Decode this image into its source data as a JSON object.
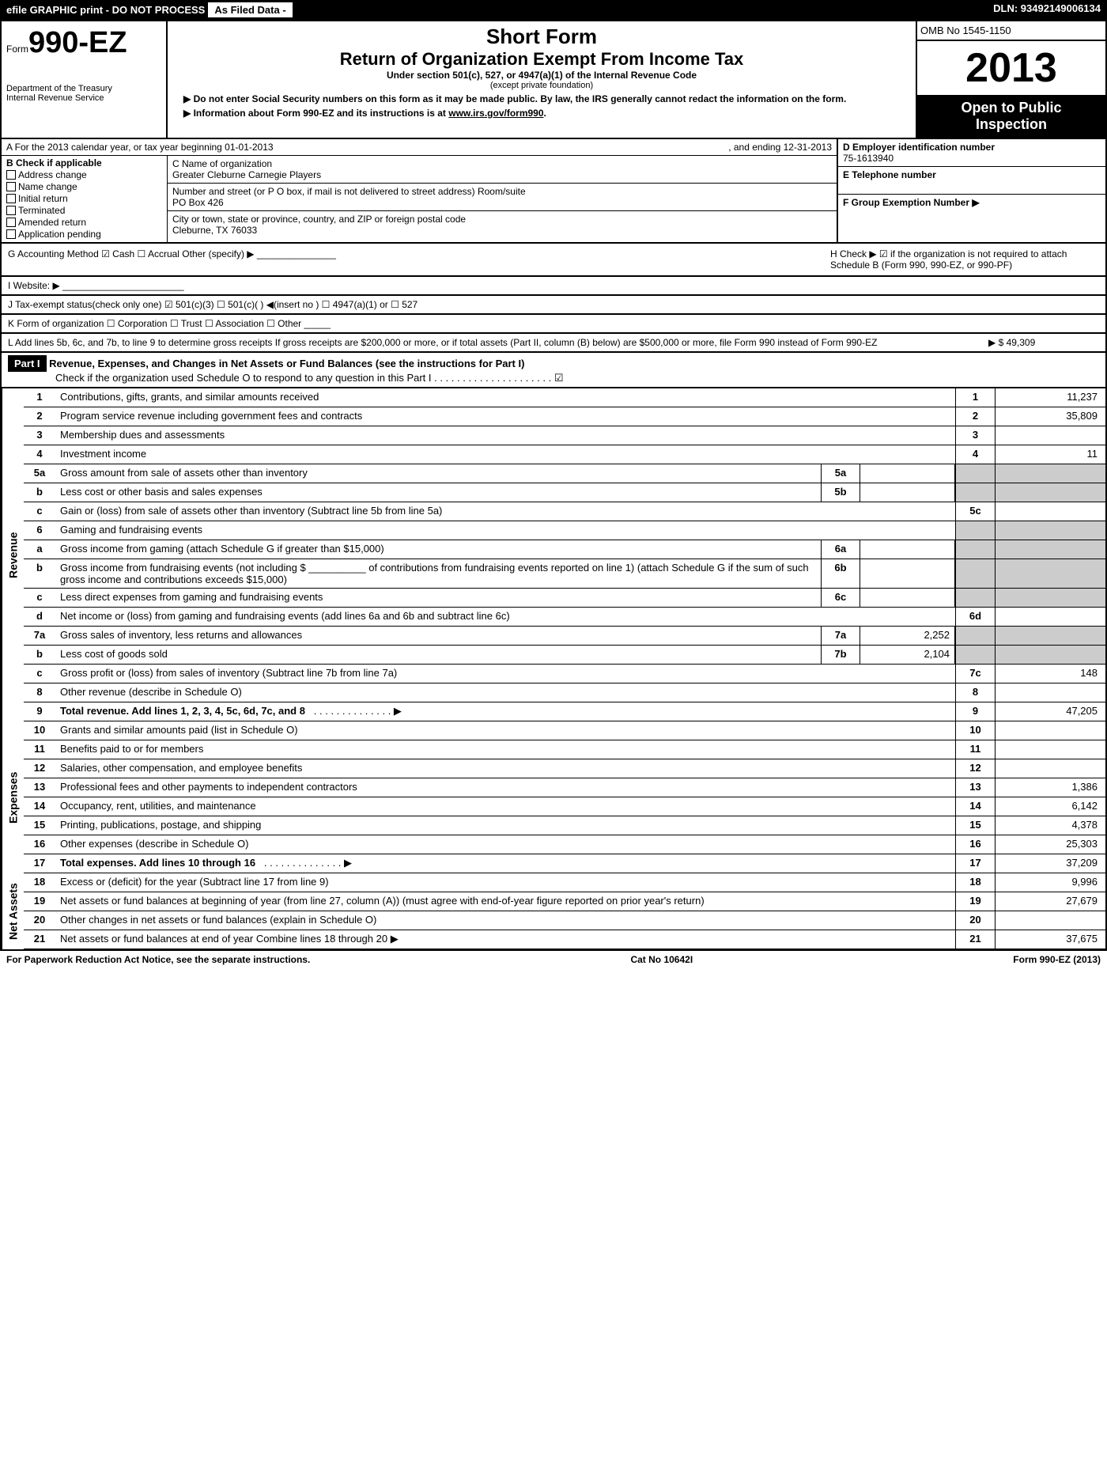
{
  "topbar": {
    "efile": "efile GRAPHIC print - DO NOT PROCESS",
    "asfiled": "As Filed Data -",
    "dln": "DLN: 93492149006134"
  },
  "header": {
    "form_prefix": "Form",
    "form_num": "990-EZ",
    "dept1": "Department of the Treasury",
    "dept2": "Internal Revenue Service",
    "short_form": "Short Form",
    "title": "Return of Organization Exempt From Income Tax",
    "sub1": "Under section 501(c), 527, or 4947(a)(1) of the Internal Revenue Code",
    "sub2": "(except private foundation)",
    "instr1": "▶ Do not enter Social Security numbers on this form as it may be made public. By law, the IRS generally cannot redact the information on the form.",
    "instr2": "▶ Information about Form 990-EZ and its instructions is at ",
    "instr2_link": "www.irs.gov/form990",
    "omb": "OMB No 1545-1150",
    "year": "2013",
    "open1": "Open to Public",
    "open2": "Inspection"
  },
  "section_a": {
    "cal_year": "A For the 2013 calendar year, or tax year beginning 01-01-2013",
    "ending": ", and ending 12-31-2013",
    "b_label": "B Check if applicable",
    "checks": [
      "Address change",
      "Name change",
      "Initial return",
      "Terminated",
      "Amended return",
      "Application pending"
    ],
    "c_label": "C Name of organization",
    "c_name": "Greater Cleburne Carnegie Players",
    "street_label": "Number and street (or P O box, if mail is not delivered to street address) Room/suite",
    "street": "PO Box 426",
    "city_label": "City or town, state or province, country, and ZIP or foreign postal code",
    "city": "Cleburne, TX 76033",
    "d_label": "D Employer identification number",
    "d_val": "75-1613940",
    "e_label": "E Telephone number",
    "f_label": "F Group Exemption Number ▶"
  },
  "gh": {
    "g": "G Accounting Method   ☑ Cash  ☐ Accrual  Other (specify) ▶ _______________",
    "h": "H Check ▶ ☑ if the organization is not required to attach Schedule B (Form 990, 990-EZ, or 990-PF)"
  },
  "i": "I Website: ▶ _______________________",
  "j": "J Tax-exempt status(check only one) ☑ 501(c)(3) ☐ 501(c)( ) ◀(insert no ) ☐ 4947(a)(1) or ☐ 527",
  "k": "K Form of organization  ☐ Corporation ☐ Trust ☐ Association ☐ Other _____",
  "l": {
    "text": "L Add lines 5b, 6c, and 7b, to line 9 to determine gross receipts  If gross receipts are $200,000 or more, or if total assets (Part II, column (B) below) are $500,000 or more, file Form 990 instead of Form 990-EZ",
    "val": "▶ $ 49,309"
  },
  "part1": {
    "label": "Part I",
    "title": "Revenue, Expenses, and Changes in Net Assets or Fund Balances (see the instructions for Part I)",
    "sub": "Check if the organization used Schedule O to respond to any question in this Part I . . . . . . . . . . . . . . . . . . . . . ☑"
  },
  "sides": {
    "revenue": "Revenue",
    "expenses": "Expenses",
    "netassets": "Net Assets"
  },
  "lines": {
    "l1": {
      "n": "1",
      "d": "Contributions, gifts, grants, and similar amounts received",
      "box": "1",
      "v": "11,237"
    },
    "l2": {
      "n": "2",
      "d": "Program service revenue including government fees and contracts",
      "box": "2",
      "v": "35,809"
    },
    "l3": {
      "n": "3",
      "d": "Membership dues and assessments",
      "box": "3",
      "v": ""
    },
    "l4": {
      "n": "4",
      "d": "Investment income",
      "box": "4",
      "v": "11"
    },
    "l5a": {
      "n": "5a",
      "d": "Gross amount from sale of assets other than inventory",
      "sb": "5a",
      "sv": ""
    },
    "l5b": {
      "n": "b",
      "d": "Less cost or other basis and sales expenses",
      "sb": "5b",
      "sv": ""
    },
    "l5c": {
      "n": "c",
      "d": "Gain or (loss) from sale of assets other than inventory (Subtract line 5b from line 5a)",
      "box": "5c",
      "v": ""
    },
    "l6": {
      "n": "6",
      "d": "Gaming and fundraising events"
    },
    "l6a": {
      "n": "a",
      "d": "Gross income from gaming (attach Schedule G if greater than $15,000)",
      "sb": "6a",
      "sv": ""
    },
    "l6b": {
      "n": "b",
      "d": "Gross income from fundraising events (not including $ __________ of contributions from fundraising events reported on line 1) (attach Schedule G if the sum of such gross income and contributions exceeds $15,000)",
      "sb": "6b",
      "sv": ""
    },
    "l6c": {
      "n": "c",
      "d": "Less direct expenses from gaming and fundraising events",
      "sb": "6c",
      "sv": ""
    },
    "l6d": {
      "n": "d",
      "d": "Net income or (loss) from gaming and fundraising events (add lines 6a and 6b and subtract line 6c)",
      "box": "6d",
      "v": ""
    },
    "l7a": {
      "n": "7a",
      "d": "Gross sales of inventory, less returns and allowances",
      "sb": "7a",
      "sv": "2,252"
    },
    "l7b": {
      "n": "b",
      "d": "Less cost of goods sold",
      "sb": "7b",
      "sv": "2,104"
    },
    "l7c": {
      "n": "c",
      "d": "Gross profit or (loss) from sales of inventory (Subtract line 7b from line 7a)",
      "box": "7c",
      "v": "148"
    },
    "l8": {
      "n": "8",
      "d": "Other revenue (describe in Schedule O)",
      "box": "8",
      "v": ""
    },
    "l9": {
      "n": "9",
      "d": "Total revenue. Add lines 1, 2, 3, 4, 5c, 6d, 7c, and 8",
      "box": "9",
      "v": "47,205",
      "bold": true,
      "arrow": "▶"
    },
    "l10": {
      "n": "10",
      "d": "Grants and similar amounts paid (list in Schedule O)",
      "box": "10",
      "v": ""
    },
    "l11": {
      "n": "11",
      "d": "Benefits paid to or for members",
      "box": "11",
      "v": ""
    },
    "l12": {
      "n": "12",
      "d": "Salaries, other compensation, and employee benefits",
      "box": "12",
      "v": ""
    },
    "l13": {
      "n": "13",
      "d": "Professional fees and other payments to independent contractors",
      "box": "13",
      "v": "1,386"
    },
    "l14": {
      "n": "14",
      "d": "Occupancy, rent, utilities, and maintenance",
      "box": "14",
      "v": "6,142"
    },
    "l15": {
      "n": "15",
      "d": "Printing, publications, postage, and shipping",
      "box": "15",
      "v": "4,378"
    },
    "l16": {
      "n": "16",
      "d": "Other expenses (describe in Schedule O)",
      "box": "16",
      "v": "25,303"
    },
    "l17": {
      "n": "17",
      "d": "Total expenses. Add lines 10 through 16",
      "box": "17",
      "v": "37,209",
      "bold": true,
      "arrow": "▶"
    },
    "l18": {
      "n": "18",
      "d": "Excess or (deficit) for the year (Subtract line 17 from line 9)",
      "box": "18",
      "v": "9,996"
    },
    "l19": {
      "n": "19",
      "d": "Net assets or fund balances at beginning of year (from line 27, column (A)) (must agree with end-of-year figure reported on prior year's return)",
      "box": "19",
      "v": "27,679"
    },
    "l20": {
      "n": "20",
      "d": "Other changes in net assets or fund balances (explain in Schedule O)",
      "box": "20",
      "v": ""
    },
    "l21": {
      "n": "21",
      "d": "Net assets or fund balances at end of year Combine lines 18 through 20",
      "box": "21",
      "v": "37,675",
      "arrow": "▶"
    }
  },
  "footer": {
    "left": "For Paperwork Reduction Act Notice, see the separate instructions.",
    "mid": "Cat No 10642I",
    "right": "Form 990-EZ (2013)"
  }
}
